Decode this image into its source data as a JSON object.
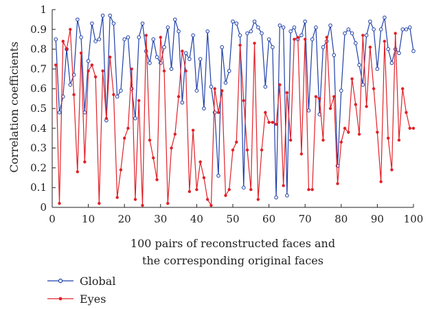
{
  "chart_data": {
    "type": "line",
    "title": "",
    "xlabel": [
      "100 pairs of reconstructed faces and",
      "the corresponding original faces"
    ],
    "ylabel": "Correlation coefficients",
    "xlim": [
      0,
      100
    ],
    "ylim": [
      0,
      1
    ],
    "x_ticks": [
      "0",
      "10",
      "20",
      "30",
      "40",
      "50",
      "60",
      "70",
      "80",
      "90",
      "100"
    ],
    "y_ticks": [
      "0",
      "0.1",
      "0.2",
      "0.3",
      "0.4",
      "0.5",
      "0.6",
      "0.7",
      "0.8",
      "0.9",
      "1"
    ],
    "grid": false,
    "legend_position": "bottom-left",
    "x": [
      1,
      2,
      3,
      4,
      5,
      6,
      7,
      8,
      9,
      10,
      11,
      12,
      13,
      14,
      15,
      16,
      17,
      18,
      19,
      20,
      21,
      22,
      23,
      24,
      25,
      26,
      27,
      28,
      29,
      30,
      31,
      32,
      33,
      34,
      35,
      36,
      37,
      38,
      39,
      40,
      41,
      42,
      43,
      44,
      45,
      46,
      47,
      48,
      49,
      50,
      51,
      52,
      53,
      54,
      55,
      56,
      57,
      58,
      59,
      60,
      61,
      62,
      63,
      64,
      65,
      66,
      67,
      68,
      69,
      70,
      71,
      72,
      73,
      74,
      75,
      76,
      77,
      78,
      79,
      80,
      81,
      82,
      83,
      84,
      85,
      86,
      87,
      88,
      89,
      90,
      91,
      92,
      93,
      94,
      95,
      96,
      97,
      98,
      99,
      100
    ],
    "series": [
      {
        "name": "Global",
        "color": "#1f3fa8",
        "marker": "circle",
        "values": [
          0.85,
          0.48,
          0.56,
          0.8,
          0.62,
          0.67,
          0.95,
          0.86,
          0.48,
          0.74,
          0.93,
          0.84,
          0.85,
          0.97,
          0.44,
          0.97,
          0.93,
          0.56,
          0.59,
          0.85,
          0.86,
          0.6,
          0.45,
          0.86,
          0.93,
          0.79,
          0.73,
          0.85,
          0.76,
          0.73,
          0.81,
          0.91,
          0.7,
          0.95,
          0.89,
          0.53,
          0.78,
          0.75,
          0.87,
          0.59,
          0.75,
          0.5,
          0.89,
          0.61,
          0.48,
          0.16,
          0.81,
          0.63,
          0.69,
          0.94,
          0.93,
          0.87,
          0.1,
          0.88,
          0.89,
          0.94,
          0.91,
          0.88,
          0.61,
          0.85,
          0.81,
          0.05,
          0.92,
          0.91,
          0.06,
          0.89,
          0.91,
          0.85,
          0.87,
          0.94,
          0.49,
          0.85,
          0.91,
          0.47,
          0.81,
          0.84,
          0.92,
          0.77,
          0.21,
          0.59,
          0.88,
          0.9,
          0.88,
          0.83,
          0.72,
          0.62,
          0.87,
          0.94,
          0.9,
          0.7,
          0.9,
          0.96,
          0.8,
          0.73,
          0.8,
          0.78,
          0.9,
          0.9,
          0.91,
          0.79
        ]
      },
      {
        "name": "Eyes",
        "color": "#e02128",
        "marker": "star",
        "values": [
          0.72,
          0.02,
          0.84,
          0.8,
          0.9,
          0.57,
          0.18,
          0.78,
          0.23,
          0.69,
          0.72,
          0.66,
          0.02,
          0.69,
          0.45,
          0.76,
          0.57,
          0.05,
          0.19,
          0.35,
          0.4,
          0.7,
          0.04,
          0.54,
          0.01,
          0.87,
          0.34,
          0.25,
          0.14,
          0.86,
          0.69,
          0.02,
          0.3,
          0.37,
          0.56,
          0.79,
          0.69,
          0.08,
          0.39,
          0.09,
          0.23,
          0.15,
          0.04,
          0.01,
          0.6,
          0.48,
          0.59,
          0.06,
          0.09,
          0.29,
          0.33,
          0.82,
          0.54,
          0.29,
          0.09,
          0.83,
          0.04,
          0.29,
          0.48,
          0.43,
          0.43,
          0.42,
          0.62,
          0.11,
          0.58,
          0.34,
          0.85,
          0.86,
          0.27,
          0.85,
          0.09,
          0.09,
          0.56,
          0.55,
          0.34,
          0.86,
          0.5,
          0.56,
          0.12,
          0.33,
          0.4,
          0.38,
          0.65,
          0.52,
          0.37,
          0.87,
          0.51,
          0.81,
          0.6,
          0.38,
          0.13,
          0.84,
          0.35,
          0.19,
          0.88,
          0.34,
          0.6,
          0.48,
          0.4,
          0.4
        ]
      }
    ]
  }
}
